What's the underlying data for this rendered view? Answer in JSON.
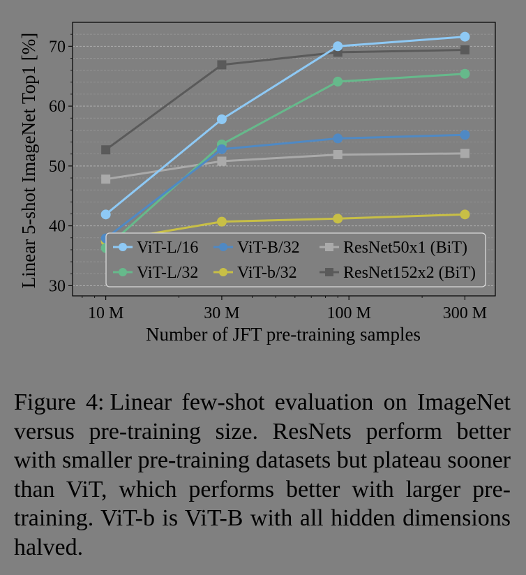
{
  "chart_data": {
    "type": "line",
    "xlabel": "Number of JFT pre-training samples",
    "ylabel": "Linear 5-shot ImageNet Top1 [%]",
    "x_scale": "log",
    "x_ticks": [
      {
        "value": 10,
        "label": "10 M"
      },
      {
        "value": 30,
        "label": "30 M"
      },
      {
        "value": 100,
        "label": "100 M"
      },
      {
        "value": 300,
        "label": "300 M"
      }
    ],
    "y_ticks": [
      30,
      40,
      50,
      60,
      70
    ],
    "xlim": [
      7.3,
      400
    ],
    "ylim": [
      28.3,
      74
    ],
    "grid": "horizontal dashed",
    "legend_position": "lower-right",
    "x": [
      10,
      30,
      90,
      300
    ],
    "series": [
      {
        "name": "ViT-L/16",
        "marker": "circle",
        "color": "#8ec9f5",
        "values": [
          41.9,
          57.8,
          70.0,
          71.6
        ]
      },
      {
        "name": "ViT-L/32",
        "marker": "circle",
        "color": "#66b98b",
        "values": [
          36.3,
          53.6,
          64.1,
          65.4
        ]
      },
      {
        "name": "ViT-B/32",
        "marker": "circle",
        "color": "#4f89c4",
        "values": [
          37.9,
          52.8,
          54.6,
          55.2
        ]
      },
      {
        "name": "ViT-b/32",
        "marker": "circle",
        "color": "#c8bf46",
        "values": [
          37.4,
          40.7,
          41.2,
          41.9
        ]
      },
      {
        "name": "ResNet50x1 (BiT)",
        "marker": "square",
        "color": "#aaaaaa",
        "values": [
          47.8,
          50.8,
          51.9,
          52.1
        ]
      },
      {
        "name": "ResNet152x2 (BiT)",
        "marker": "square",
        "color": "#5a5a5a",
        "values": [
          52.7,
          66.9,
          69.0,
          69.4
        ]
      }
    ]
  },
  "caption": {
    "label": "Figure 4:",
    "text": "Linear few-shot evaluation on ImageNet versus pre-training size. ResNets perform better with smaller pre-training datasets but plateau sooner than ViT, which performs better with larger pre-training. ViT-b is ViT-B with all hidden dimensions halved."
  }
}
